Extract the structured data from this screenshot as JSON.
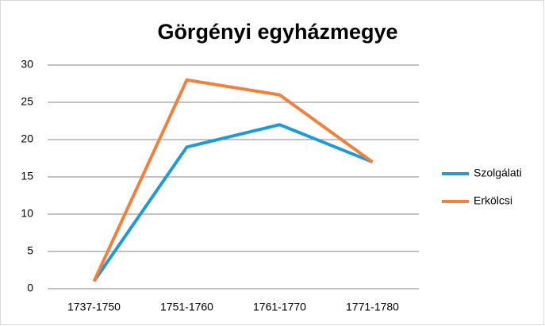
{
  "chart_data": {
    "type": "line",
    "title": "Görgényi egyházmegye",
    "categories": [
      "1737-1750",
      "1751-1760",
      "1761-1770",
      "1771-1780"
    ],
    "series": [
      {
        "name": "Szolgálati",
        "color": "#1f9ad6",
        "values": [
          1,
          19,
          22,
          17
        ]
      },
      {
        "name": "Erkölcsi",
        "color": "#f0803c",
        "values": [
          1,
          28,
          26,
          17
        ]
      }
    ],
    "ylim": [
      0,
      30
    ],
    "yticks": [
      0,
      5,
      10,
      15,
      20,
      25,
      30
    ],
    "grid": true,
    "legend": "right"
  }
}
